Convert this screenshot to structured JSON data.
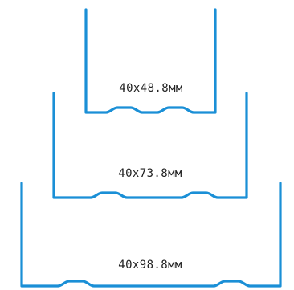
{
  "colors": {
    "stroke": "#1a8fd6",
    "text": "#222222"
  },
  "profiles": [
    {
      "label": "40x48.8мм"
    },
    {
      "label": "40x73.8мм"
    },
    {
      "label": "40x98.8мм"
    }
  ]
}
